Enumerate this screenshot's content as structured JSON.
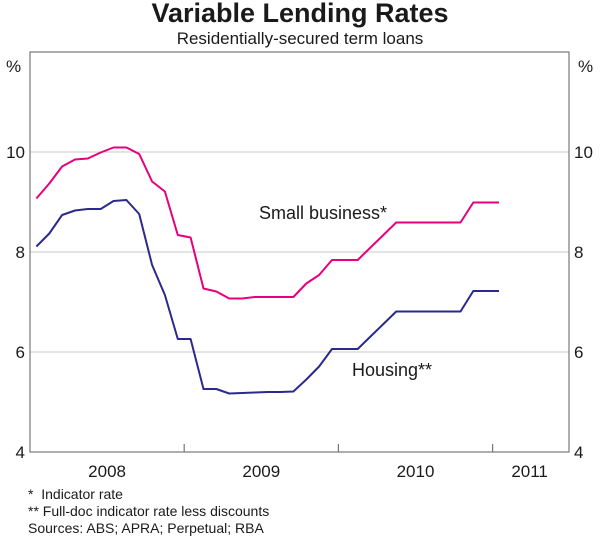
{
  "chart_data": {
    "type": "line",
    "title": "Variable Lending Rates",
    "subtitle": "Residentially-secured term loans",
    "ylabel_left": "%",
    "ylabel_right": "%",
    "ylim": [
      4,
      12
    ],
    "yticks": [
      4,
      6,
      8,
      10
    ],
    "x_start": "2008-01",
    "x_end": "2011-06",
    "frequency": "monthly",
    "xtick_labels": [
      "2008",
      "2009",
      "2010",
      "2011"
    ],
    "grid": true,
    "series": [
      {
        "name": "Small business*",
        "color": "#e6007e",
        "values": [
          9.07,
          9.37,
          9.71,
          9.85,
          9.87,
          9.99,
          10.09,
          10.09,
          9.96,
          9.41,
          9.21,
          8.34,
          8.29,
          7.27,
          7.21,
          7.07,
          7.07,
          7.1,
          7.1,
          7.1,
          7.1,
          7.37,
          7.54,
          7.84,
          7.84,
          7.84,
          8.09,
          8.34,
          8.59,
          8.59,
          8.59,
          8.59,
          8.59,
          8.59,
          8.99,
          8.99,
          8.99
        ]
      },
      {
        "name": "Housing**",
        "color": "#2b2a8c",
        "values": [
          8.11,
          8.37,
          8.74,
          8.83,
          8.86,
          8.86,
          9.02,
          9.04,
          8.76,
          7.74,
          7.14,
          6.26,
          6.26,
          5.26,
          5.26,
          5.17,
          5.18,
          5.19,
          5.2,
          5.2,
          5.21,
          5.45,
          5.71,
          6.06,
          6.06,
          6.06,
          6.31,
          6.56,
          6.81,
          6.81,
          6.81,
          6.81,
          6.81,
          6.81,
          7.22,
          7.22,
          7.22
        ]
      }
    ],
    "notes": [
      "*  Indicator rate",
      "** Full-doc indicator rate less discounts",
      "Sources: ABS; APRA; Perpetual; RBA"
    ]
  }
}
